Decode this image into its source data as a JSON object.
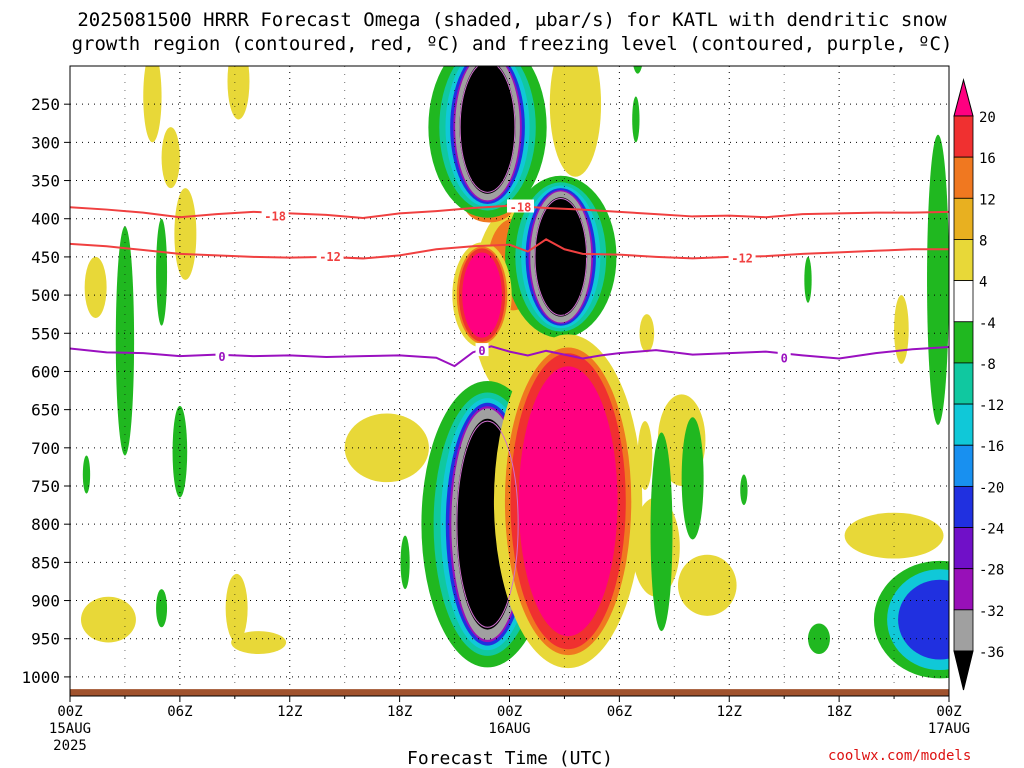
{
  "title": {
    "line1": "2025081500 HRRR Forecast Omega (shaded, μbar/s) for KATL with dendritic snow",
    "line2": "growth region (contoured, red, ºC) and freezing level (contoured, purple, ºC)"
  },
  "credit": "coolwx.com/models",
  "chart_data": {
    "type": "heatmap",
    "title": "2025081500 HRRR Forecast Omega (shaded, μbar/s) for KATL with dendritic snow growth region (contoured, red, ºC) and freezing level (contoured, purple, ºC)",
    "xlabel": "Forecast Time (UTC)",
    "ylabel": "",
    "x_ticks": [
      {
        "hours": 0,
        "label": "00Z",
        "sub1": "15AUG",
        "sub2": "2025"
      },
      {
        "hours": 6,
        "label": "06Z",
        "sub1": "",
        "sub2": ""
      },
      {
        "hours": 12,
        "label": "12Z",
        "sub1": "",
        "sub2": ""
      },
      {
        "hours": 18,
        "label": "18Z",
        "sub1": "",
        "sub2": ""
      },
      {
        "hours": 24,
        "label": "00Z",
        "sub1": "16AUG",
        "sub2": ""
      },
      {
        "hours": 30,
        "label": "06Z",
        "sub1": "",
        "sub2": ""
      },
      {
        "hours": 36,
        "label": "12Z",
        "sub1": "",
        "sub2": ""
      },
      {
        "hours": 42,
        "label": "18Z",
        "sub1": "",
        "sub2": ""
      },
      {
        "hours": 48,
        "label": "00Z",
        "sub1": "17AUG",
        "sub2": ""
      }
    ],
    "x_range_hours": [
      0,
      48
    ],
    "y_pressure_levels": [
      250,
      300,
      350,
      400,
      450,
      500,
      550,
      600,
      650,
      700,
      750,
      800,
      850,
      900,
      950,
      1000
    ],
    "y_range_hPa": [
      200,
      1025
    ],
    "y_axis_inverted": true,
    "colorbar": {
      "labels": [
        "20",
        "16",
        "12",
        "8",
        "4",
        "-4",
        "-8",
        "-12",
        "-16",
        "-20",
        "-24",
        "-28",
        "-32",
        "-36"
      ],
      "colors": [
        "#ff0080",
        "#f03030",
        "#f07820",
        "#e8b020",
        "#e8d838",
        "#ffffff",
        "#20b820",
        "#10c8a0",
        "#10c8d8",
        "#1890f0",
        "#2030e0",
        "#7010c8",
        "#9810b8",
        "#a0a0a0",
        "#000000"
      ]
    },
    "series": [
      {
        "name": "-18",
        "color": "#f04040",
        "x": [
          0,
          2,
          4,
          6,
          8,
          10,
          12,
          14,
          16,
          18,
          20,
          22,
          24,
          26,
          28,
          30,
          32,
          34,
          36,
          38,
          40,
          42,
          44,
          46,
          48
        ],
        "y": [
          385,
          388,
          392,
          398,
          394,
          391,
          393,
          395,
          399,
          393,
          390,
          386,
          383,
          386,
          388,
          391,
          394,
          397,
          396,
          398,
          394,
          393,
          392,
          392,
          391
        ]
      },
      {
        "name": "-12",
        "color": "#f04040",
        "x": [
          0,
          2,
          4,
          6,
          8,
          10,
          12,
          14,
          16,
          18,
          20,
          22,
          24,
          25,
          26,
          27,
          28,
          30,
          32,
          34,
          36,
          38,
          40,
          42,
          44,
          46,
          48
        ],
        "y": [
          433,
          436,
          441,
          446,
          448,
          450,
          451,
          450,
          452,
          448,
          440,
          436,
          434,
          443,
          427,
          440,
          446,
          447,
          450,
          452,
          450,
          449,
          446,
          444,
          442,
          440,
          440
        ]
      },
      {
        "name": "0",
        "color": "#9a10c0",
        "x": [
          0,
          2,
          4,
          6,
          8,
          10,
          12,
          14,
          16,
          18,
          20,
          21,
          22,
          23,
          24,
          25,
          26,
          27,
          28,
          29,
          30,
          32,
          34,
          36,
          38,
          40,
          42,
          44,
          46,
          48
        ],
        "y": [
          570,
          575,
          576,
          580,
          578,
          580,
          579,
          581,
          580,
          579,
          582,
          593,
          575,
          567,
          574,
          579,
          573,
          578,
          583,
          579,
          576,
          572,
          578,
          576,
          574,
          579,
          583,
          576,
          571,
          568
        ]
      }
    ],
    "contour_labels": [
      {
        "text": "-18",
        "x": 11.2,
        "y": 396
      },
      {
        "text": "-18",
        "x": 24.6,
        "y": 384
      },
      {
        "text": "-12",
        "x": 14.2,
        "y": 449
      },
      {
        "text": "-12",
        "x": 36.7,
        "y": 451
      },
      {
        "text": "0",
        "x": 8.3,
        "y": 580
      },
      {
        "text": "0",
        "x": 22.5,
        "y": 572
      },
      {
        "text": "0",
        "x": 39.0,
        "y": 582
      }
    ],
    "omega_features": [
      {
        "x": 22.8,
        "y": 280,
        "rx": 1.7,
        "ry": 95,
        "level": -36
      },
      {
        "x": 26.8,
        "y": 450,
        "rx": 1.6,
        "ry": 85,
        "level": -36
      },
      {
        "x": 22.8,
        "y": 800,
        "rx": 1.9,
        "ry": 150,
        "level": -36
      },
      {
        "x": 27.2,
        "y": 770,
        "rx": 3.0,
        "ry": 190,
        "level": 20
      },
      {
        "x": 22.5,
        "y": 500,
        "rx": 1.2,
        "ry": 60,
        "level": 20
      },
      {
        "x": 47.5,
        "y": 925,
        "rx": 2.4,
        "ry": 55,
        "level": -20
      }
    ],
    "grid": true,
    "legend": "colorbar-right"
  }
}
